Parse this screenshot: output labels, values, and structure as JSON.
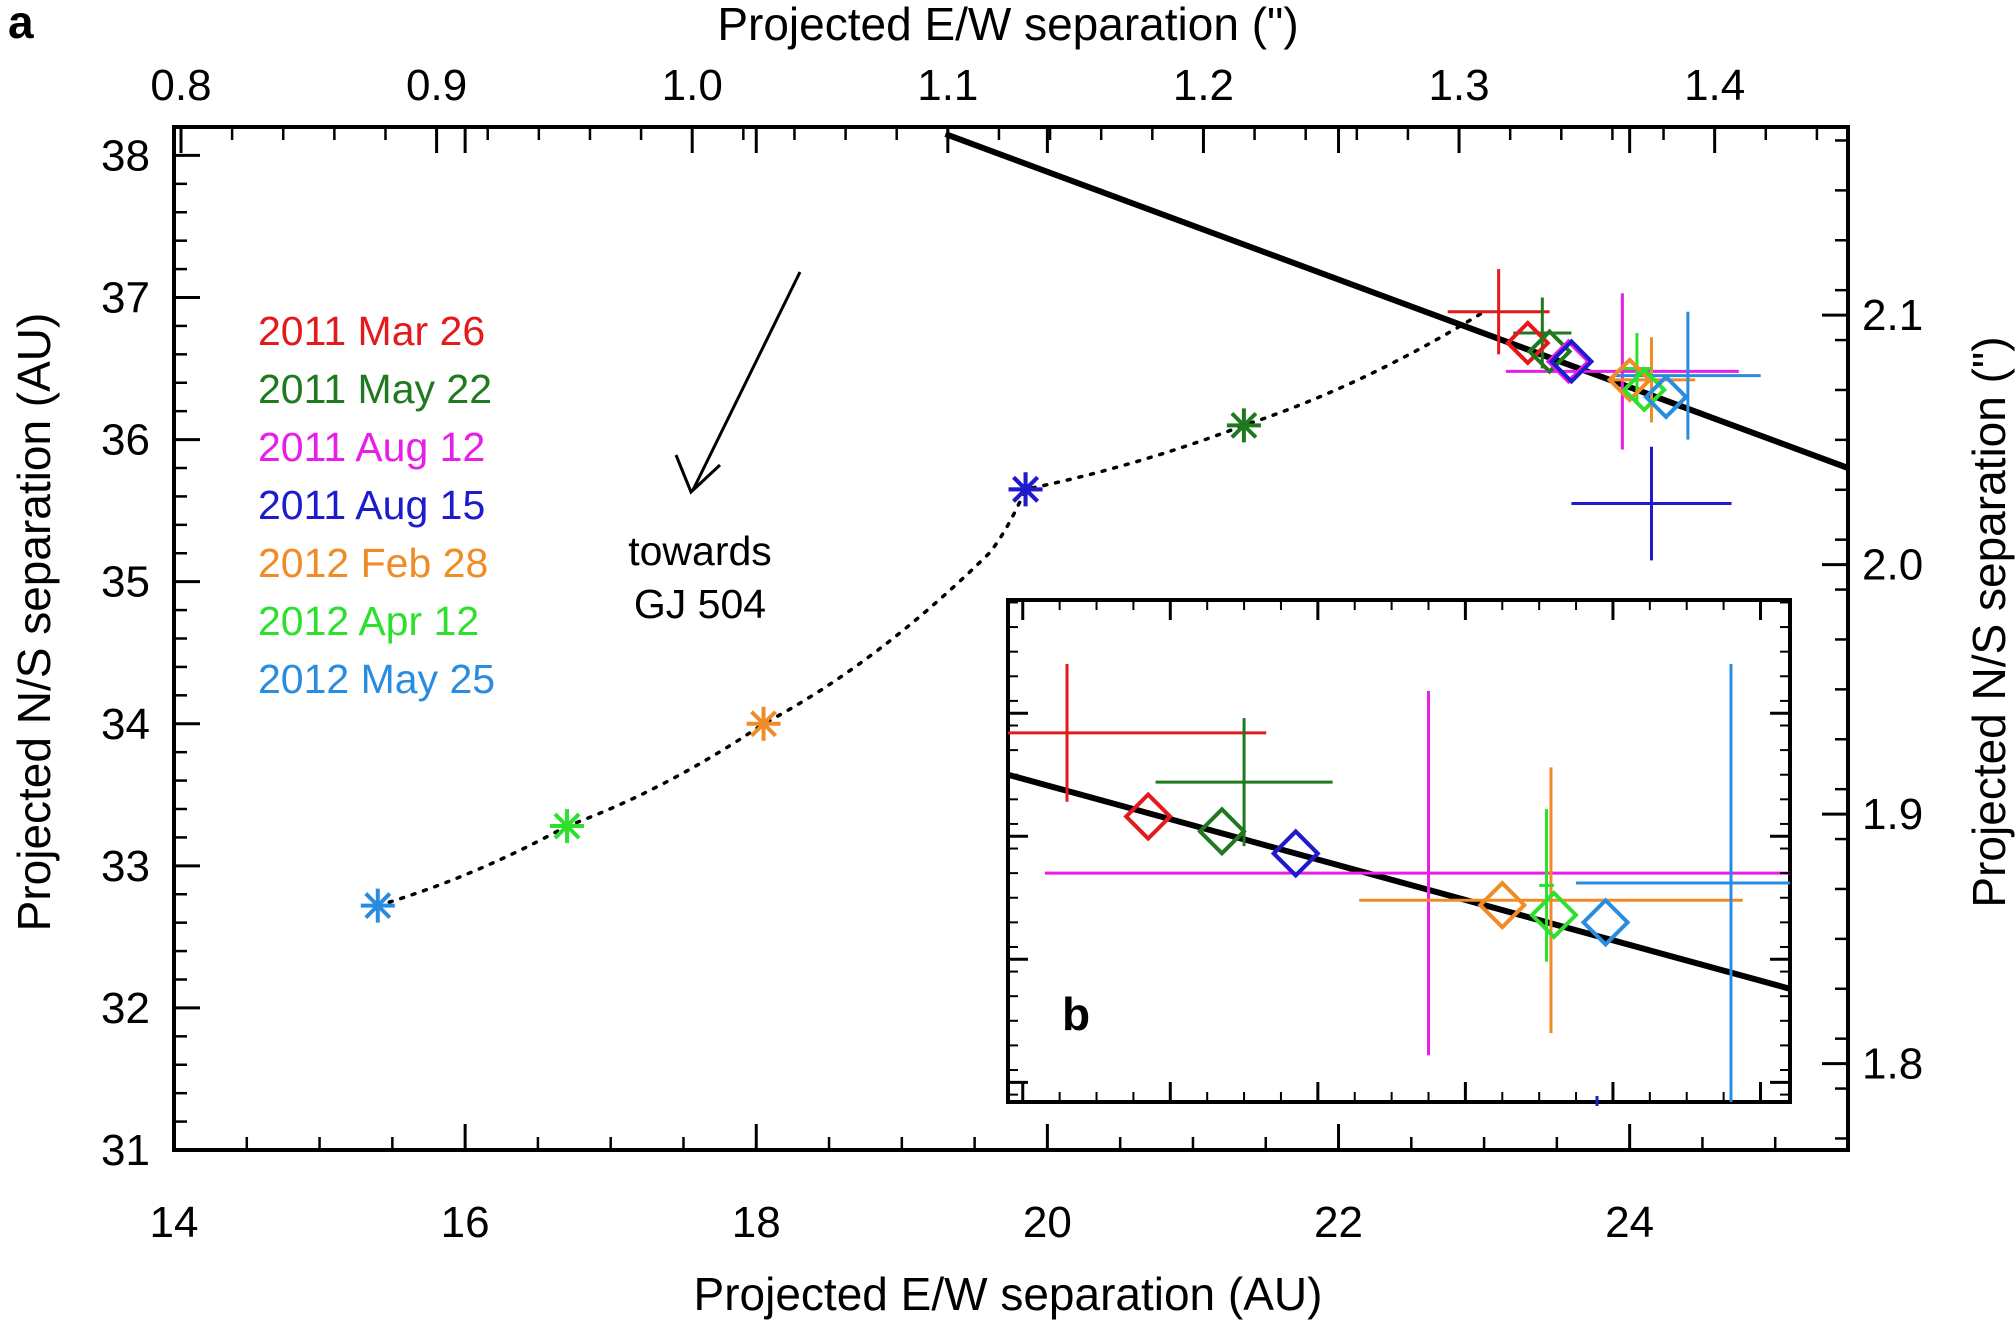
{
  "chart_data": {
    "type": "scatter",
    "panel_a_label": "a",
    "panel_b_label": "b",
    "xlabel_bottom": "Projected E/W separation (AU)",
    "xlabel_top": "Projected E/W separation (\")",
    "ylabel_left": "Projected N/S separation (AU)",
    "ylabel_right": "Projected N/S separation (\")",
    "xlim_au": [
      14,
      25.5
    ],
    "ylim_au": [
      31,
      38.2
    ],
    "xticks_bottom": [
      "14",
      "16",
      "18",
      "20",
      "22",
      "24"
    ],
    "xticks_top": [
      "0.8",
      "0.9",
      "1.0",
      "1.1",
      "1.2",
      "1.3",
      "1.4"
    ],
    "yticks_left": [
      "31",
      "32",
      "33",
      "34",
      "35",
      "36",
      "37",
      "38"
    ],
    "yticks_right": [
      "1.8",
      "1.9",
      "2.0",
      "2.1"
    ],
    "arrow_label_line1": "towards",
    "arrow_label_line2": "GJ 504",
    "epochs": [
      {
        "name": "2011 Mar 26",
        "color": "#e31a1c"
      },
      {
        "name": "2011 May 22",
        "color": "#1f7a1f"
      },
      {
        "name": "2011 Aug 12",
        "color": "#e81ee8"
      },
      {
        "name": "2011 Aug 15",
        "color": "#1c1ccc"
      },
      {
        "name": "2012 Feb 28",
        "color": "#f08c28"
      },
      {
        "name": "2012 Apr 12",
        "color": "#2ee02e"
      },
      {
        "name": "2012 May 25",
        "color": "#2a8ce0"
      }
    ],
    "fit_line": [
      [
        19.3,
        38.15
      ],
      [
        25.5,
        35.8
      ]
    ],
    "background_track": [
      {
        "x": 15.4,
        "y": 32.72,
        "color": "#2a8ce0"
      },
      {
        "x": 16.7,
        "y": 33.28,
        "color": "#2ee02e"
      },
      {
        "x": 18.05,
        "y": 34.0,
        "color": "#f08c28"
      },
      {
        "x": 19.85,
        "y": 35.65,
        "color": "#e81ee8"
      },
      {
        "x": 19.85,
        "y": 35.65,
        "color": "#1c1ccc"
      },
      {
        "x": 21.35,
        "y": 36.1,
        "color": "#1f7a1f"
      }
    ],
    "track_path": [
      [
        15.4,
        32.72
      ],
      [
        16.7,
        33.28
      ],
      [
        18.05,
        34.0
      ],
      [
        19.6,
        35.2
      ],
      [
        19.85,
        35.65
      ],
      [
        21.35,
        36.1
      ],
      [
        23.0,
        36.9
      ]
    ],
    "measurements_main": [
      {
        "epoch": "2011 Mar 26",
        "x": 23.3,
        "y": 36.68,
        "color": "#e31a1c"
      },
      {
        "epoch": "2011 May 22",
        "x": 23.45,
        "y": 36.62,
        "color": "#1f7a1f"
      },
      {
        "epoch": "2011 Aug 12",
        "x": 23.58,
        "y": 36.55,
        "color": "#e81ee8"
      },
      {
        "epoch": "2011 Aug 15",
        "x": 23.6,
        "y": 36.55,
        "color": "#1c1ccc"
      },
      {
        "epoch": "2012 Feb 28",
        "x": 24.0,
        "y": 36.42,
        "color": "#f08c28"
      },
      {
        "epoch": "2012 Apr 12",
        "x": 24.1,
        "y": 36.35,
        "color": "#2ee02e"
      },
      {
        "epoch": "2012 May 25",
        "x": 24.25,
        "y": 36.3,
        "color": "#2a8ce0"
      }
    ],
    "error_bars_main": [
      {
        "x": 23.1,
        "y": 36.9,
        "xerr": 0.35,
        "yerr": 0.3,
        "color": "#e31a1c"
      },
      {
        "x": 23.4,
        "y": 36.75,
        "xerr": 0.2,
        "yerr": 0.25,
        "color": "#1f7a1f"
      },
      {
        "x": 23.95,
        "y": 36.48,
        "xerr": 0.8,
        "yerr": 0.55,
        "color": "#e81ee8"
      },
      {
        "x": 24.15,
        "y": 35.55,
        "xerr": 0.55,
        "yerr": 0.4,
        "color": "#1c1ccc"
      },
      {
        "x": 24.15,
        "y": 36.42,
        "xerr": 0.3,
        "yerr": 0.3,
        "color": "#f08c28"
      },
      {
        "x": 24.05,
        "y": 36.5,
        "xerr": 0.1,
        "yerr": 0.25,
        "color": "#2ee02e"
      },
      {
        "x": 24.4,
        "y": 36.45,
        "xerr": 0.5,
        "yerr": 0.45,
        "color": "#2a8ce0"
      }
    ],
    "inset_xlim": [
      19.9,
      25.2
    ],
    "inset_ylim": [
      1.792,
      1.996
    ],
    "inset_yticks": [
      1.8,
      1.85,
      1.9,
      1.95
    ],
    "inset_fit_line": [
      [
        19.9,
        1.925
      ],
      [
        25.2,
        1.838
      ]
    ],
    "inset_points": [
      {
        "x": 20.85,
        "y": 1.908,
        "color": "#e31a1c"
      },
      {
        "x": 21.35,
        "y": 1.902,
        "color": "#1f7a1f"
      },
      {
        "x": 21.85,
        "y": 1.893,
        "color": "#e81ee8"
      },
      {
        "x": 21.85,
        "y": 1.893,
        "color": "#1c1ccc"
      },
      {
        "x": 23.25,
        "y": 1.872,
        "color": "#f08c28"
      },
      {
        "x": 23.6,
        "y": 1.868,
        "color": "#2ee02e"
      },
      {
        "x": 23.95,
        "y": 1.865,
        "color": "#2a8ce0"
      }
    ],
    "inset_error_bars": [
      {
        "x": 20.3,
        "y": 1.942,
        "xerr": 1.35,
        "yerr": 0.028,
        "color": "#e31a1c"
      },
      {
        "x": 21.5,
        "y": 1.922,
        "xerr": 0.6,
        "yerr": 0.026,
        "color": "#1f7a1f"
      },
      {
        "x": 22.75,
        "y": 1.885,
        "xerr": 2.6,
        "yerr": 0.074,
        "color": "#e81ee8"
      },
      {
        "x": 23.58,
        "y": 1.874,
        "xerr": 1.3,
        "yerr": 0.054,
        "color": "#f08c28"
      },
      {
        "x": 23.55,
        "y": 1.88,
        "xerr": 0.05,
        "yerr": 0.031,
        "color": "#2ee02e"
      },
      {
        "x": 24.8,
        "y": 1.881,
        "xerr": 1.05,
        "yerr": 0.089,
        "color": "#2a8ce0"
      }
    ]
  }
}
